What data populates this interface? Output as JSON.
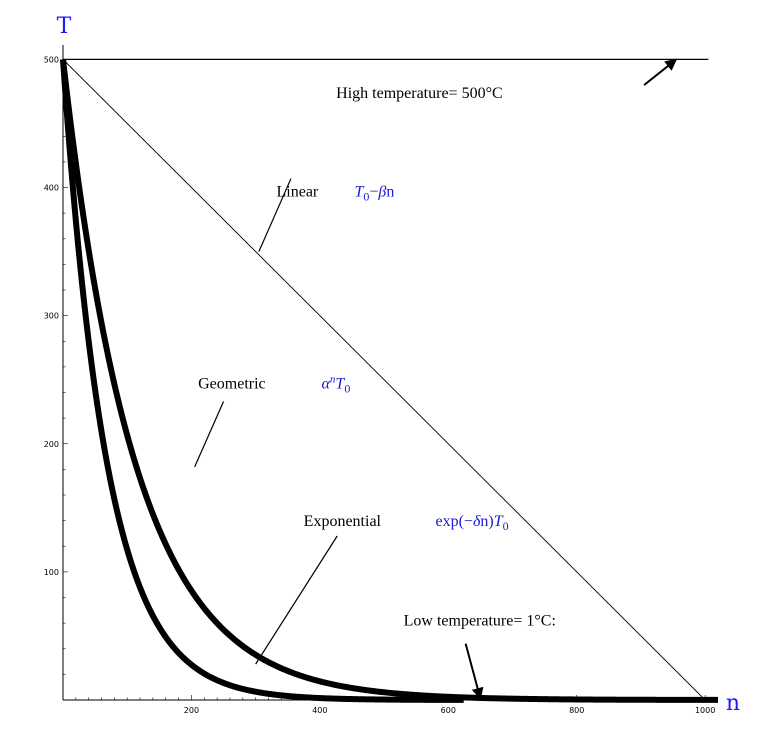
{
  "chart_data": {
    "type": "line",
    "xlabel": "n",
    "ylabel": "T",
    "xlim": [
      0,
      1020
    ],
    "ylim": [
      0,
      505
    ],
    "x_ticks": [
      200,
      400,
      600,
      800,
      1000
    ],
    "y_ticks": [
      100,
      200,
      300,
      400,
      500
    ],
    "grid": false,
    "reference_lines": [
      {
        "name": "high-temperature-line",
        "y": 500,
        "x_start": 0,
        "x_end": 1005
      }
    ],
    "series": [
      {
        "key": "linear",
        "formula": "T0 - beta n",
        "T0": 500,
        "beta": 0.5,
        "x_start": 0,
        "x_end": 1000,
        "stroke_weight": "thin"
      },
      {
        "key": "geometric",
        "formula": "alpha^n T0",
        "T0": 500,
        "alpha": 0.9912,
        "x_start": 0,
        "x_end": 1020,
        "stroke_weight": "bold"
      },
      {
        "key": "exponential",
        "formula": "exp(-delta n) T0",
        "T0": 500,
        "delta": 0.0145,
        "x_start": 0,
        "x_end": 625,
        "stroke_weight": "bold"
      }
    ],
    "annotations": [
      {
        "key": "high",
        "text": "High temperature= 500°C",
        "at": [
          555,
          470
        ]
      },
      {
        "key": "linear",
        "text": "Linear",
        "formula_parts": [
          "T",
          "0",
          "−",
          "β",
          "n"
        ],
        "at": [
          365,
          393
        ],
        "formula_at": [
          485,
          393
        ],
        "pointer_from": [
          355,
          407
        ],
        "pointer_to": [
          305,
          350
        ]
      },
      {
        "key": "geometric",
        "text": "Geometric",
        "formula_parts": [
          "α",
          "n",
          "T",
          "0"
        ],
        "at": [
          263,
          243
        ],
        "formula_at": [
          425,
          243
        ],
        "pointer_from": [
          250,
          233
        ],
        "pointer_to": [
          205,
          182
        ]
      },
      {
        "key": "exponential",
        "text": "Exponential",
        "formula_parts": [
          "exp(−",
          "δ",
          "n)",
          "T",
          "0"
        ],
        "at": [
          435,
          136
        ],
        "formula_at": [
          637,
          136
        ],
        "pointer_from": [
          427,
          128
        ],
        "pointer_to": [
          300,
          28
        ]
      },
      {
        "key": "low",
        "text": "Low temperature= 1°C:",
        "at": [
          649,
          58
        ]
      }
    ],
    "arrows": [
      {
        "key": "high-temperature-arrow",
        "from": [
          905,
          480
        ],
        "to": [
          955,
          500
        ]
      },
      {
        "key": "low-temperature-arrow",
        "from": [
          627,
          44
        ],
        "to": [
          650,
          1
        ]
      }
    ]
  }
}
